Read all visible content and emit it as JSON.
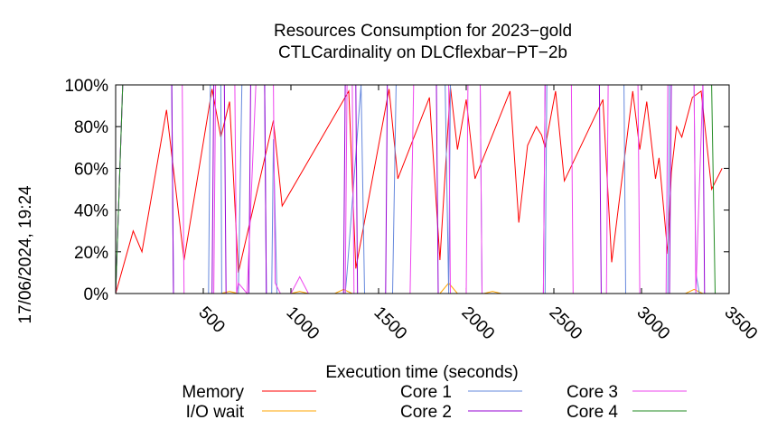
{
  "chart_data": {
    "type": "line",
    "title": "Resources Consumption for 2023−gold",
    "subtitle": "CTLCardinality on DLCflexbar−PT−2b",
    "xlabel": "Execution time (seconds)",
    "ylabel": "",
    "side_label": "17/06/2024, 19:24",
    "xlim": [
      0,
      3500
    ],
    "ylim": [
      0,
      100
    ],
    "x_ticks": [
      500,
      1000,
      1500,
      2000,
      2500,
      3000,
      3500
    ],
    "y_ticks": [
      0,
      20,
      40,
      60,
      80,
      100
    ],
    "y_tick_labels": [
      "0%",
      "20%",
      "40%",
      "60%",
      "80%",
      "100%"
    ],
    "grid": false,
    "legend_position": "bottom",
    "series": [
      {
        "name": "Memory",
        "color": "#ff0000",
        "points": [
          [
            0,
            0
          ],
          [
            100,
            30
          ],
          [
            150,
            20
          ],
          [
            290,
            88
          ],
          [
            390,
            16
          ],
          [
            550,
            98
          ],
          [
            600,
            75
          ],
          [
            650,
            92
          ],
          [
            700,
            10
          ],
          [
            900,
            83
          ],
          [
            950,
            42
          ],
          [
            1330,
            97
          ],
          [
            1370,
            12
          ],
          [
            1560,
            98
          ],
          [
            1610,
            55
          ],
          [
            1790,
            94
          ],
          [
            1850,
            16
          ],
          [
            1910,
            99
          ],
          [
            1950,
            69
          ],
          [
            2000,
            93
          ],
          [
            2050,
            55
          ],
          [
            2250,
            97
          ],
          [
            2300,
            34
          ],
          [
            2350,
            71
          ],
          [
            2400,
            80
          ],
          [
            2430,
            76
          ],
          [
            2450,
            70
          ],
          [
            2510,
            97
          ],
          [
            2560,
            54
          ],
          [
            2780,
            93
          ],
          [
            2830,
            15
          ],
          [
            2950,
            97
          ],
          [
            2990,
            69
          ],
          [
            3030,
            92
          ],
          [
            3080,
            55
          ],
          [
            3100,
            65
          ],
          [
            3150,
            19
          ],
          [
            3170,
            58
          ],
          [
            3200,
            80
          ],
          [
            3230,
            75
          ],
          [
            3290,
            94
          ],
          [
            3340,
            97
          ],
          [
            3400,
            50
          ],
          [
            3460,
            60
          ]
        ]
      },
      {
        "name": "I/O wait",
        "color": "#ffa500",
        "points": [
          [
            0,
            0
          ],
          [
            600,
            0
          ],
          [
            650,
            1
          ],
          [
            700,
            0
          ],
          [
            1000,
            0
          ],
          [
            1050,
            1
          ],
          [
            1100,
            0
          ],
          [
            1250,
            0
          ],
          [
            1300,
            2
          ],
          [
            1350,
            0
          ],
          [
            1850,
            0
          ],
          [
            1900,
            5
          ],
          [
            1950,
            0
          ],
          [
            2100,
            0
          ],
          [
            2150,
            1
          ],
          [
            2200,
            0
          ],
          [
            3250,
            0
          ],
          [
            3300,
            2
          ],
          [
            3350,
            0
          ],
          [
            3460,
            0
          ]
        ]
      },
      {
        "name": "Core 1",
        "color": "#6688dd",
        "points": [
          [
            0,
            0
          ],
          [
            40,
            100
          ],
          [
            320,
            100
          ],
          [
            330,
            0
          ],
          [
            530,
            0
          ],
          [
            540,
            100
          ],
          [
            600,
            100
          ],
          [
            605,
            0
          ],
          [
            700,
            0
          ],
          [
            720,
            100
          ],
          [
            850,
            100
          ],
          [
            860,
            0
          ],
          [
            890,
            0
          ],
          [
            900,
            74
          ],
          [
            920,
            0
          ],
          [
            1310,
            0
          ],
          [
            1320,
            10
          ],
          [
            1400,
            100
          ],
          [
            1420,
            0
          ],
          [
            1580,
            0
          ],
          [
            1600,
            100
          ],
          [
            1880,
            100
          ],
          [
            1900,
            0
          ],
          [
            1910,
            100
          ],
          [
            2080,
            100
          ],
          [
            2090,
            0
          ],
          [
            2450,
            0
          ],
          [
            2460,
            100
          ],
          [
            2900,
            100
          ],
          [
            2910,
            0
          ],
          [
            3150,
            0
          ],
          [
            3160,
            100
          ],
          [
            3300,
            100
          ],
          [
            3310,
            10
          ],
          [
            3330,
            0
          ],
          [
            3460,
            0
          ]
        ]
      },
      {
        "name": "Core 2",
        "color": "#9400d3",
        "points": [
          [
            0,
            0
          ],
          [
            40,
            100
          ],
          [
            320,
            100
          ],
          [
            330,
            0
          ],
          [
            550,
            0
          ],
          [
            560,
            100
          ],
          [
            620,
            100
          ],
          [
            630,
            0
          ],
          [
            760,
            0
          ],
          [
            770,
            100
          ],
          [
            850,
            100
          ],
          [
            860,
            0
          ],
          [
            1300,
            0
          ],
          [
            1310,
            100
          ],
          [
            1370,
            100
          ],
          [
            1380,
            0
          ],
          [
            1540,
            0
          ],
          [
            1550,
            100
          ],
          [
            1830,
            100
          ],
          [
            1840,
            0
          ],
          [
            2440,
            0
          ],
          [
            2450,
            100
          ],
          [
            2760,
            100
          ],
          [
            2770,
            0
          ],
          [
            3160,
            0
          ],
          [
            3170,
            100
          ],
          [
            3350,
            100
          ],
          [
            3360,
            0
          ],
          [
            3460,
            0
          ]
        ]
      },
      {
        "name": "Core 3",
        "color": "#ee44ee",
        "points": [
          [
            0,
            0
          ],
          [
            40,
            100
          ],
          [
            380,
            100
          ],
          [
            390,
            0
          ],
          [
            560,
            0
          ],
          [
            570,
            100
          ],
          [
            680,
            100
          ],
          [
            690,
            0
          ],
          [
            700,
            5
          ],
          [
            750,
            0
          ],
          [
            800,
            100
          ],
          [
            900,
            100
          ],
          [
            910,
            5
          ],
          [
            940,
            0
          ],
          [
            1000,
            0
          ],
          [
            1050,
            8
          ],
          [
            1100,
            0
          ],
          [
            1310,
            0
          ],
          [
            1320,
            100
          ],
          [
            1350,
            100
          ],
          [
            1360,
            0
          ],
          [
            1680,
            0
          ],
          [
            1700,
            100
          ],
          [
            1900,
            100
          ],
          [
            1910,
            0
          ],
          [
            2000,
            0
          ],
          [
            2010,
            100
          ],
          [
            2080,
            100
          ],
          [
            2090,
            0
          ],
          [
            2440,
            0
          ],
          [
            2450,
            100
          ],
          [
            2600,
            100
          ],
          [
            2610,
            0
          ],
          [
            2800,
            0
          ],
          [
            2810,
            100
          ],
          [
            2980,
            100
          ],
          [
            2990,
            0
          ],
          [
            3140,
            0
          ],
          [
            3150,
            100
          ],
          [
            3300,
            100
          ],
          [
            3310,
            0
          ],
          [
            3350,
            100
          ],
          [
            3460,
            100
          ]
        ]
      },
      {
        "name": "Core 4",
        "color": "#228b22",
        "points": [
          [
            0,
            0
          ],
          [
            40,
            100
          ],
          [
            3400,
            100
          ],
          [
            3420,
            0
          ],
          [
            3460,
            0
          ]
        ]
      }
    ]
  }
}
